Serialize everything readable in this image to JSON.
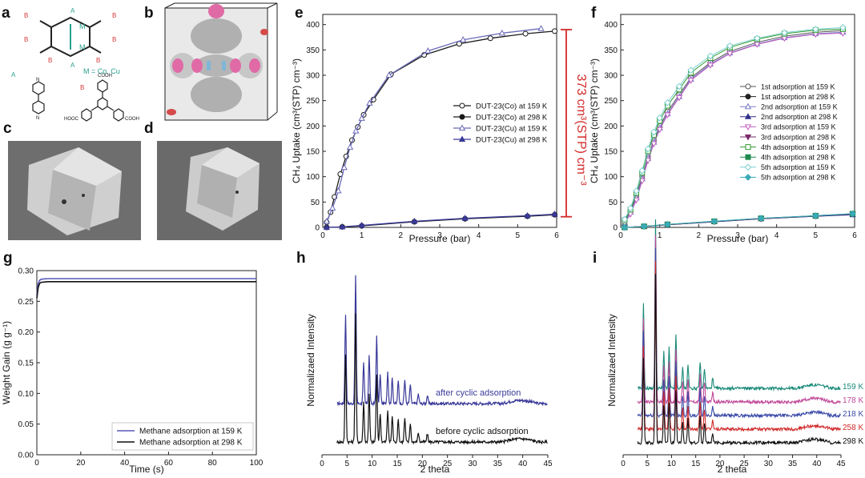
{
  "panel_labels": [
    "a",
    "b",
    "c",
    "d",
    "e",
    "f",
    "g",
    "h",
    "i"
  ],
  "scheme": {
    "metal_note": "M = Co, Cu",
    "ligand_a": "A",
    "ligand_b": "B",
    "node_m": "M",
    "cooh": "COOH",
    "hooc": "HOOC",
    "n_label": "N"
  },
  "colors": {
    "series_co_159": "#1a1a1a",
    "series_co_298": "#1a1a1a",
    "series_cu_159": "#6a6ab8",
    "series_cu_298": "#3a3a9a",
    "annotation_red": "#d42a2a",
    "cycle_colors": [
      "#555555",
      "#222222",
      "#7a78c8",
      "#2e2e8a",
      "#c060c0",
      "#7a2a6a",
      "#2f9a2f",
      "#1f8a4f",
      "#7ad0d0",
      "#3aaab8"
    ],
    "xrd_after": "#3a3a9a",
    "xrd_before": "#111111",
    "xrd_temps": [
      "#1a8a78",
      "#c04a9a",
      "#3a4aa8",
      "#d02a2a",
      "#111111"
    ]
  },
  "chart_data": [
    {
      "id": "e",
      "type": "line",
      "xlabel": "Pressure (bar)",
      "ylabel": "CH₄ Uptake (cm³(STP) cm⁻³)",
      "xlim": [
        0,
        6
      ],
      "ylim": [
        0,
        420
      ],
      "xticks": [
        0,
        1,
        2,
        3,
        4,
        5,
        6
      ],
      "yticks": [
        0,
        50,
        100,
        150,
        200,
        250,
        300,
        350,
        400
      ],
      "annotation": "373 cm³(STP) cm⁻³",
      "series": [
        {
          "name": "DUT-23(Co) at 159 K",
          "marker": "circle-open",
          "x": [
            0.1,
            0.2,
            0.3,
            0.45,
            0.6,
            0.75,
            0.9,
            1.05,
            1.3,
            1.75,
            2.6,
            3.5,
            4.3,
            5.2,
            5.95
          ],
          "y": [
            10,
            30,
            60,
            105,
            140,
            172,
            198,
            222,
            252,
            302,
            340,
            362,
            373,
            382,
            387
          ]
        },
        {
          "name": "DUT-23(Co) at 298 K",
          "marker": "circle-filled",
          "x": [
            0.1,
            0.5,
            1.0,
            2.35,
            3.65,
            5.25,
            5.95
          ],
          "y": [
            0,
            1,
            3,
            11,
            17,
            22,
            25
          ]
        },
        {
          "name": "DUT-23(Cu) at 159 K",
          "marker": "triangle-open",
          "x": [
            0.1,
            0.25,
            0.4,
            0.55,
            0.7,
            0.85,
            1.0,
            1.2,
            1.7,
            2.7,
            3.6,
            4.6,
            5.6
          ],
          "y": [
            12,
            38,
            72,
            118,
            158,
            190,
            215,
            245,
            300,
            348,
            370,
            383,
            392
          ]
        },
        {
          "name": "DUT-23(Cu) at 298 K",
          "marker": "triangle-filled",
          "x": [
            0.1,
            0.5,
            1.0,
            2.35,
            3.65,
            5.25,
            5.95
          ],
          "y": [
            0,
            1,
            4,
            12,
            18,
            23,
            26
          ]
        }
      ]
    },
    {
      "id": "f",
      "type": "line",
      "xlabel": "Pressure (bar)",
      "ylabel": "CH₄ Uptake (cm³(STP) cm⁻³)",
      "xlim": [
        0,
        6
      ],
      "ylim": [
        0,
        420
      ],
      "xticks": [
        0,
        1,
        2,
        3,
        4,
        5,
        6
      ],
      "yticks": [
        0,
        50,
        100,
        150,
        200,
        250,
        300,
        350,
        400
      ],
      "legend": [
        "1st adsorption at 159 K",
        "1st adsorption at 298 K",
        "2nd adsorption at 159 K",
        "2nd adsorption at 298 K",
        "3rd adsorption at 159 K",
        "3rd adsorption at 298 K",
        "4th adsorption at 159 K",
        "4th adsorption at 298 K",
        "5th adsorption at 159 K",
        "5th adsorption at 298 K"
      ],
      "markers": [
        "circle-open",
        "circle-filled",
        "triangle-open",
        "triangle-filled",
        "tri-down-open",
        "tri-down-filled",
        "square-open",
        "square-filled",
        "diamond-open",
        "diamond-filled"
      ],
      "x_159": [
        0.1,
        0.25,
        0.4,
        0.55,
        0.7,
        0.85,
        1.0,
        1.2,
        1.5,
        1.8,
        2.3,
        2.8,
        3.5,
        4.2,
        5.0,
        5.7
      ],
      "series_159": [
        [
          12,
          32,
          62,
          100,
          140,
          172,
          200,
          228,
          262,
          295,
          325,
          347,
          365,
          377,
          385,
          388
        ],
        [
          10,
          30,
          58,
          96,
          136,
          168,
          196,
          224,
          258,
          292,
          322,
          344,
          362,
          374,
          382,
          385
        ],
        [
          8,
          26,
          54,
          92,
          132,
          165,
          193,
          222,
          256,
          290,
          320,
          343,
          361,
          373,
          381,
          383
        ],
        [
          14,
          35,
          68,
          108,
          150,
          182,
          210,
          240,
          272,
          305,
          334,
          355,
          371,
          382,
          389,
          391
        ],
        [
          16,
          38,
          72,
          112,
          155,
          188,
          216,
          246,
          278,
          310,
          338,
          358,
          373,
          384,
          391,
          394
        ]
      ],
      "x_298": [
        0.1,
        0.6,
        1.2,
        2.4,
        3.6,
        5.0,
        5.95
      ],
      "series_298": [
        [
          0,
          2,
          5,
          11,
          17,
          22,
          26
        ],
        [
          0,
          2,
          5,
          11,
          17,
          22,
          25
        ],
        [
          0,
          2,
          5,
          12,
          17,
          23,
          26
        ],
        [
          0,
          2,
          6,
          12,
          18,
          23,
          27
        ],
        [
          0,
          2,
          6,
          12,
          18,
          23,
          27
        ]
      ]
    },
    {
      "id": "g",
      "type": "line",
      "xlabel": "Time (s)",
      "ylabel": "Weight Gain (g g⁻¹)",
      "xlim": [
        0,
        100
      ],
      "ylim": [
        0,
        0.3
      ],
      "xticks": [
        0,
        20,
        40,
        60,
        80,
        100
      ],
      "yticks": [
        0.0,
        0.05,
        0.1,
        0.15,
        0.2,
        0.25,
        0.3
      ],
      "series": [
        {
          "name": "Methane adsorption at 159 K",
          "x": [
            0,
            0.6,
            1.2,
            2,
            5,
            10,
            20,
            40,
            60,
            80,
            100
          ],
          "y": [
            0.26,
            0.278,
            0.284,
            0.286,
            0.287,
            0.287,
            0.287,
            0.287,
            0.287,
            0.287,
            0.287
          ]
        },
        {
          "name": "Methane adsorption at 298 K",
          "x": [
            0,
            0.6,
            1.2,
            2,
            5,
            10,
            20,
            40,
            60,
            80,
            100
          ],
          "y": [
            0.255,
            0.272,
            0.279,
            0.281,
            0.282,
            0.282,
            0.282,
            0.282,
            0.282,
            0.282,
            0.282
          ]
        }
      ]
    },
    {
      "id": "h",
      "type": "line",
      "xlabel": "2 theta",
      "ylabel": "Normalizaed Intensity",
      "xlim": [
        0,
        45
      ],
      "xticks": [
        0,
        5,
        10,
        15,
        20,
        25,
        30,
        35,
        40,
        45
      ],
      "peaks": [
        [
          4.7,
          0.55
        ],
        [
          6.7,
          0.8
        ],
        [
          8.3,
          0.25
        ],
        [
          9.4,
          0.3
        ],
        [
          10.9,
          0.42
        ],
        [
          11.6,
          0.18
        ],
        [
          13.1,
          0.2
        ],
        [
          14.0,
          0.16
        ],
        [
          15.2,
          0.14
        ],
        [
          16.5,
          0.15
        ],
        [
          17.6,
          0.12
        ],
        [
          19.2,
          0.06
        ],
        [
          21.0,
          0.05
        ]
      ],
      "traces": [
        {
          "name": "after cyclic adsorption",
          "offset": 1
        },
        {
          "name": "before cyclic adsorption",
          "offset": 0
        }
      ]
    },
    {
      "id": "i",
      "type": "line",
      "xlabel": "2 theta",
      "ylabel": "Normalizaed Intensity",
      "xlim": [
        0,
        45
      ],
      "xticks": [
        0,
        5,
        10,
        15,
        20,
        25,
        30,
        35,
        40,
        45
      ],
      "peaks": [
        [
          4.2,
          0.5
        ],
        [
          6.7,
          1.0
        ],
        [
          8.4,
          0.22
        ],
        [
          9.5,
          0.24
        ],
        [
          10.9,
          0.32
        ],
        [
          12.3,
          0.12
        ],
        [
          13.4,
          0.14
        ],
        [
          15.9,
          0.16
        ],
        [
          16.8,
          0.12
        ],
        [
          18.5,
          0.06
        ]
      ],
      "traces": [
        {
          "name": "159 K",
          "offset": 4
        },
        {
          "name": "178 K",
          "offset": 3
        },
        {
          "name": "218 K",
          "offset": 2
        },
        {
          "name": "258 K",
          "offset": 1
        },
        {
          "name": "298 K",
          "offset": 0
        }
      ]
    }
  ]
}
